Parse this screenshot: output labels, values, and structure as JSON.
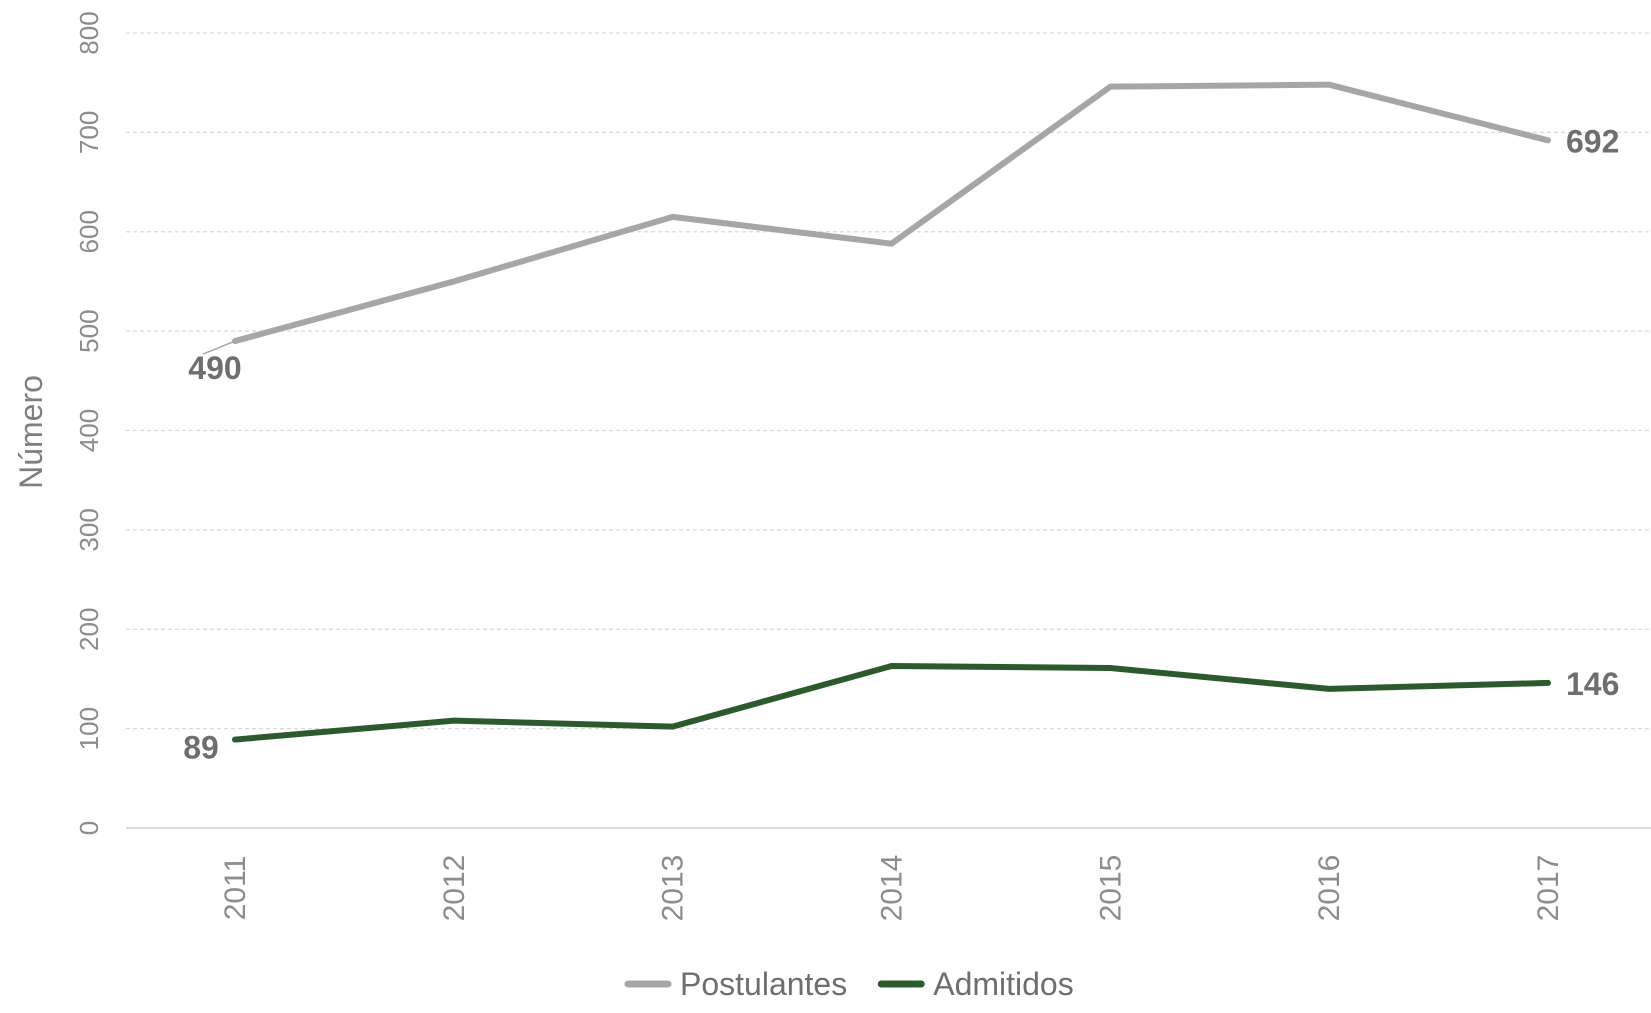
{
  "chart_data": {
    "type": "line",
    "title": "",
    "xlabel": "",
    "ylabel": "Número",
    "ylim": [
      0,
      800
    ],
    "yticks": [
      0,
      100,
      200,
      300,
      400,
      500,
      600,
      700,
      800
    ],
    "grid": true,
    "legend": "bottom-center",
    "categories": [
      "2011",
      "2012",
      "2013",
      "2014",
      "2015",
      "2016",
      "2017"
    ],
    "series": [
      {
        "name": "Postulantes",
        "color": "#a6a6a6",
        "values": [
          490,
          550,
          615,
          588,
          746,
          748,
          692
        ],
        "labels": [
          {
            "index": 0,
            "text": "490"
          },
          {
            "index": 6,
            "text": "692"
          }
        ]
      },
      {
        "name": "Admitidos",
        "color": "#2d5a2d",
        "values": [
          89,
          108,
          102,
          163,
          161,
          140,
          146
        ],
        "labels": [
          {
            "index": 0,
            "text": "89"
          },
          {
            "index": 6,
            "text": "146"
          }
        ]
      }
    ]
  }
}
